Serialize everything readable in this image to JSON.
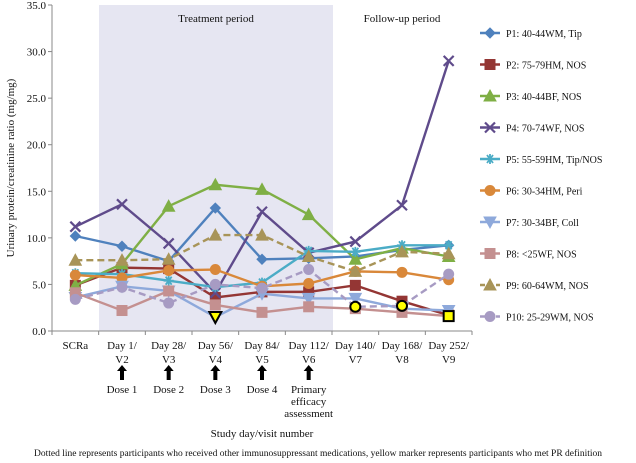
{
  "chart_data": {
    "type": "line",
    "ylabel": "Urinary protein/creatinine ratio (mg/mg)",
    "xlabel": "Study day/visit number",
    "ylim": [
      0,
      35
    ],
    "yticks": [
      "0.0",
      "5.0",
      "10.0",
      "15.0",
      "20.0",
      "25.0",
      "30.0",
      "35.0"
    ],
    "categories": [
      [
        "SCRa",
        ""
      ],
      [
        "Day 1/",
        "V2"
      ],
      [
        "Day 28/",
        "V3"
      ],
      [
        "Day 56/",
        "V4"
      ],
      [
        "Day 84/",
        "V5"
      ],
      [
        "Day 112/",
        "V6"
      ],
      [
        "Day 140/",
        "V7"
      ],
      [
        "Day 168/",
        "V8"
      ],
      [
        "Day 252/",
        "V9"
      ]
    ],
    "regions": {
      "treatment": "Treatment period",
      "followup": "Follow-up period"
    },
    "doses": [
      {
        "cat": 1,
        "label": [
          "Dose 1"
        ]
      },
      {
        "cat": 2,
        "label": [
          "Dose 2"
        ]
      },
      {
        "cat": 3,
        "label": [
          "Dose 3"
        ]
      },
      {
        "cat": 4,
        "label": [
          "Dose 4"
        ]
      },
      {
        "cat": 5,
        "label": [
          "Primary",
          "efficacy",
          "assessment"
        ]
      }
    ],
    "legend_position": "right",
    "series": [
      {
        "name": "P1: 40-44WM, Tip",
        "color": "#4F81BD",
        "marker": "diamond",
        "dashed": false,
        "values": [
          10.2,
          9.1,
          7.5,
          13.2,
          7.7,
          7.8,
          8.0,
          8.7,
          9.2
        ],
        "highlight": []
      },
      {
        "name": "P2: 75-79HM, NOS",
        "color": "#943634",
        "marker": "square",
        "dashed": false,
        "values": [
          4.9,
          6.8,
          6.7,
          3.6,
          4.2,
          4.2,
          4.9,
          3.2,
          1.7
        ],
        "highlight": []
      },
      {
        "name": "P3: 40-44BF, NOS",
        "color": "#7FAF45",
        "marker": "triangle",
        "dashed": false,
        "values": [
          4.9,
          7.2,
          13.4,
          15.7,
          15.2,
          12.5,
          7.7,
          8.9,
          8.0
        ],
        "highlight": []
      },
      {
        "name": "P4: 70-74WF, NOS",
        "color": "#5F4B8B",
        "marker": "x",
        "dashed": false,
        "values": [
          11.2,
          13.6,
          9.4,
          4.1,
          12.8,
          8.4,
          9.6,
          13.5,
          29.0
        ],
        "highlight": []
      },
      {
        "name": "P5: 55-59HM, Tip/NOS",
        "color": "#4BACC6",
        "marker": "asterisk",
        "dashed": false,
        "values": [
          6.2,
          6.1,
          5.4,
          4.7,
          5.2,
          8.6,
          8.5,
          9.2,
          9.2
        ],
        "highlight": []
      },
      {
        "name": "P6: 30-34HM, Peri",
        "color": "#D9883A",
        "marker": "circle",
        "dashed": false,
        "values": [
          6.0,
          5.7,
          6.5,
          6.6,
          4.8,
          5.1,
          6.4,
          6.3,
          5.5
        ],
        "highlight": []
      },
      {
        "name": "P7: 30-34BF, Coll",
        "color": "#8EA9DB",
        "marker": "invtriangle",
        "dashed": false,
        "values": [
          3.6,
          4.8,
          4.3,
          1.5,
          4.0,
          3.5,
          3.5,
          2.4,
          2.2
        ],
        "highlight": [
          3
        ]
      },
      {
        "name": "P8: <25WF, NOS",
        "color": "#C49090",
        "marker": "square",
        "dashed": false,
        "values": [
          4.1,
          2.2,
          4.3,
          2.8,
          2.0,
          2.6,
          2.4,
          2.0,
          1.6
        ],
        "highlight": [
          8
        ]
      },
      {
        "name": "P9: 60-64WM, NOS",
        "color": "#A89458",
        "marker": "triangle",
        "dashed": true,
        "values": [
          7.6,
          7.6,
          7.7,
          10.3,
          10.3,
          8.0,
          6.4,
          8.5,
          8.3
        ],
        "highlight": []
      },
      {
        "name": "P10: 25-29WM, NOS",
        "color": "#A79BC3",
        "marker": "circle",
        "dashed": true,
        "values": [
          3.4,
          4.7,
          3.0,
          5.0,
          4.6,
          6.6,
          2.6,
          2.7,
          6.1
        ],
        "highlight": [
          6,
          7
        ]
      }
    ],
    "highlight_color": "#FFFF00",
    "footnote": "Dotted line represents participants who received other immunosuppressant medications, yellow marker represents participants who met PR definition"
  }
}
